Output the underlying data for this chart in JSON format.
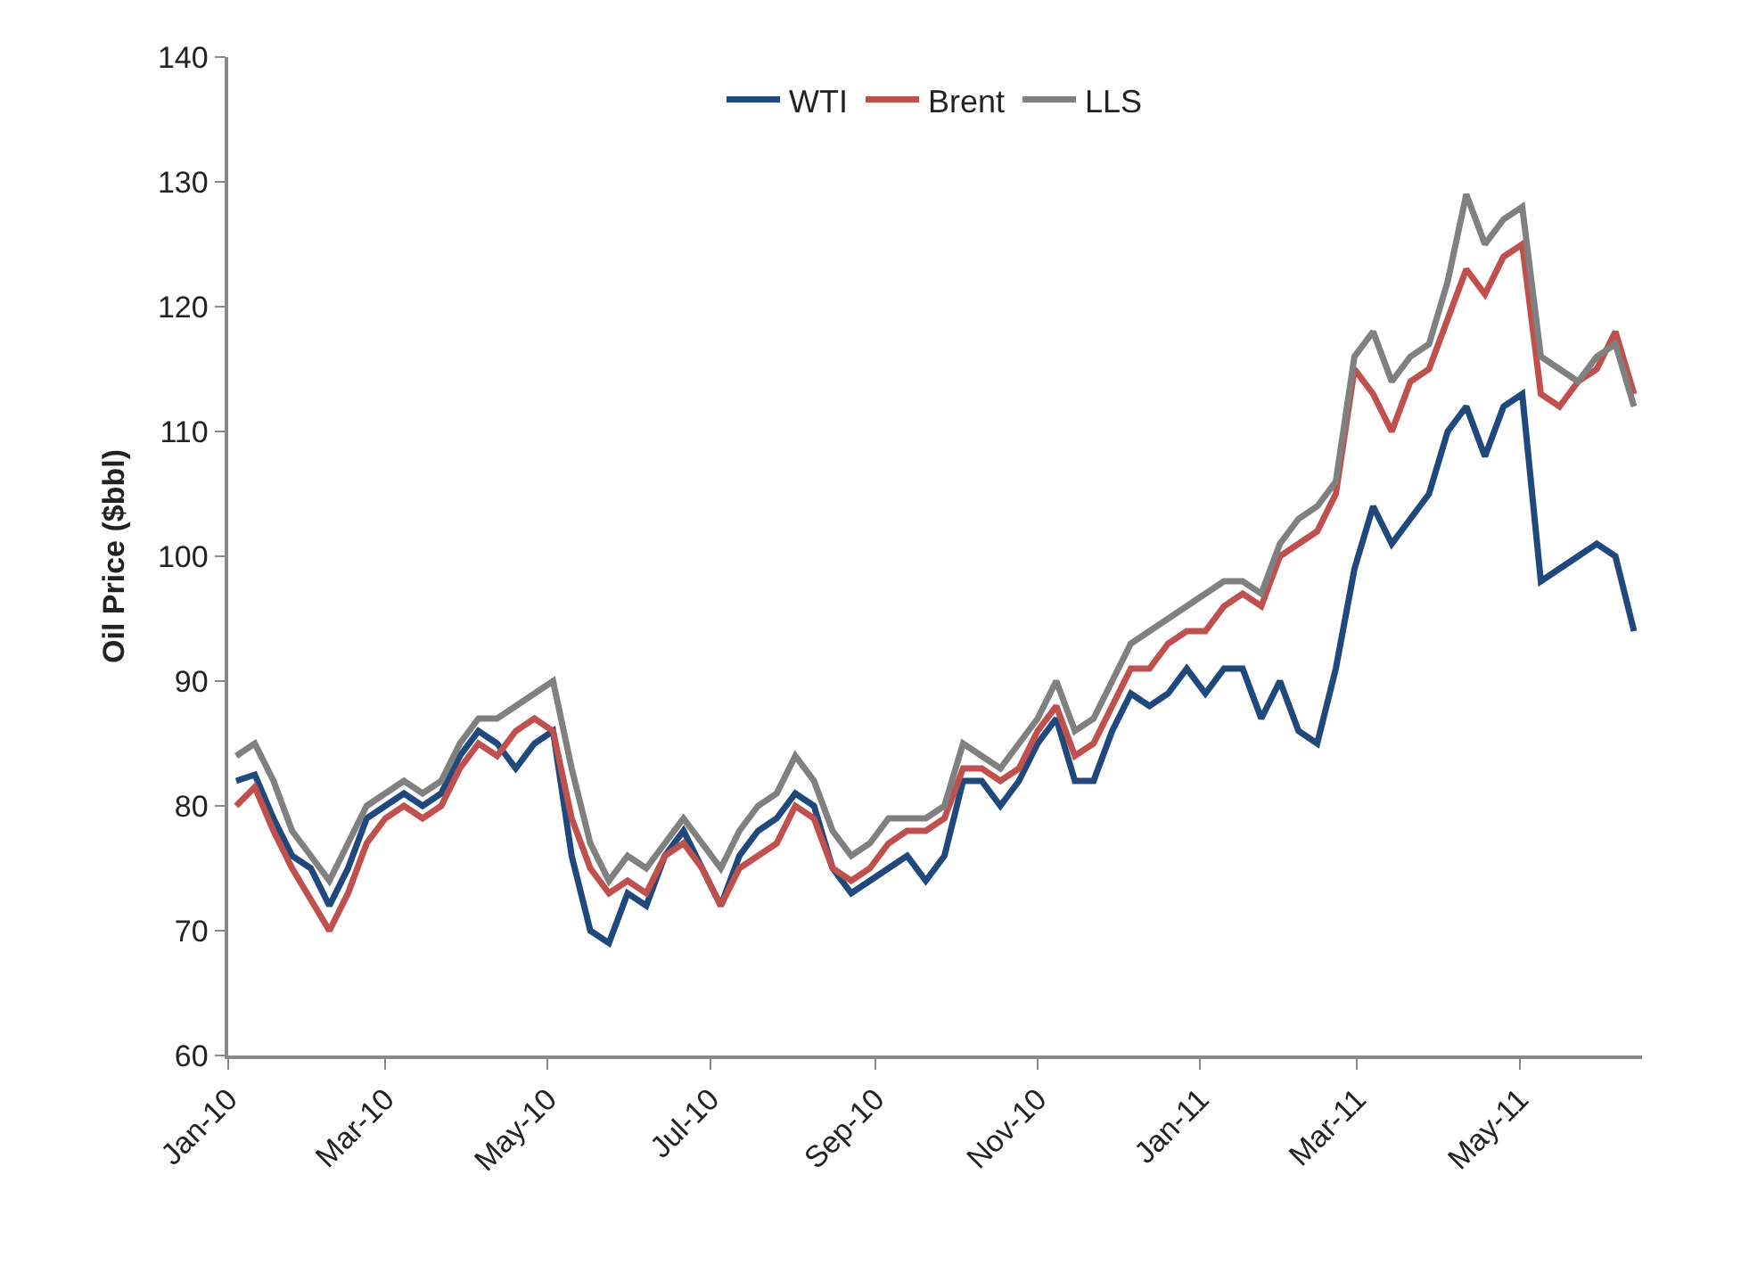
{
  "chart_data": {
    "type": "line",
    "ylabel": "Oil Price ($bbl)",
    "legend": "top",
    "grid": false,
    "marker": "none",
    "line_style": "solid",
    "x": [
      "2010-01-04",
      "2010-01-11",
      "2010-01-18",
      "2010-01-25",
      "2010-02-01",
      "2010-02-08",
      "2010-02-15",
      "2010-02-22",
      "2010-03-01",
      "2010-03-08",
      "2010-03-15",
      "2010-03-22",
      "2010-03-29",
      "2010-04-05",
      "2010-04-12",
      "2010-04-19",
      "2010-04-26",
      "2010-05-03",
      "2010-05-10",
      "2010-05-17",
      "2010-05-24",
      "2010-05-31",
      "2010-06-07",
      "2010-06-14",
      "2010-06-21",
      "2010-06-28",
      "2010-07-05",
      "2010-07-12",
      "2010-07-19",
      "2010-07-26",
      "2010-08-02",
      "2010-08-09",
      "2010-08-16",
      "2010-08-23",
      "2010-08-30",
      "2010-09-06",
      "2010-09-13",
      "2010-09-20",
      "2010-09-27",
      "2010-10-04",
      "2010-10-11",
      "2010-10-18",
      "2010-10-25",
      "2010-11-01",
      "2010-11-08",
      "2010-11-15",
      "2010-11-22",
      "2010-11-29",
      "2010-12-06",
      "2010-12-13",
      "2010-12-20",
      "2010-12-27",
      "2011-01-03",
      "2011-01-10",
      "2011-01-17",
      "2011-01-24",
      "2011-01-31",
      "2011-02-07",
      "2011-02-14",
      "2011-02-21",
      "2011-02-28",
      "2011-03-07",
      "2011-03-14",
      "2011-03-21",
      "2011-03-28",
      "2011-04-04",
      "2011-04-11",
      "2011-04-18",
      "2011-04-25",
      "2011-05-02",
      "2011-05-09",
      "2011-05-16",
      "2011-05-23",
      "2011-05-30",
      "2011-06-06",
      "2011-06-13"
    ],
    "series": [
      {
        "name": "WTI",
        "color": "#1f497d",
        "values": [
          82,
          82.5,
          79,
          76,
          75,
          72,
          75,
          79,
          80,
          81,
          80,
          81,
          84,
          86,
          85,
          83,
          85,
          86,
          76,
          70,
          69,
          73,
          72,
          76,
          78,
          75,
          72,
          76,
          78,
          79,
          81,
          80,
          75,
          73,
          74,
          75,
          76,
          74,
          76,
          82,
          82,
          80,
          82,
          85,
          87,
          82,
          82,
          86,
          89,
          88,
          89,
          91,
          89,
          91,
          91,
          87,
          90,
          86,
          85,
          91,
          99,
          104,
          101,
          103,
          105,
          110,
          112,
          108,
          112,
          113,
          98,
          99,
          100,
          101,
          100,
          94
        ]
      },
      {
        "name": "Brent",
        "color": "#c0504d",
        "values": [
          80,
          81.5,
          78,
          75,
          72.5,
          70,
          73,
          77,
          79,
          80,
          79,
          80,
          83,
          85,
          84,
          86,
          87,
          86,
          79,
          75,
          73,
          74,
          73,
          76,
          77,
          75,
          72,
          75,
          76,
          77,
          80,
          79,
          75,
          74,
          75,
          77,
          78,
          78,
          79,
          83,
          83,
          82,
          83,
          86,
          88,
          84,
          85,
          88,
          91,
          91,
          93,
          94,
          94,
          96,
          97,
          96,
          100,
          101,
          102,
          105,
          115,
          113,
          110,
          114,
          115,
          119,
          123,
          121,
          124,
          125,
          113,
          112,
          114,
          115,
          118,
          113
        ]
      },
      {
        "name": "LLS",
        "color": "#808080",
        "values": [
          84,
          85,
          82,
          78,
          76,
          74,
          77,
          80,
          81,
          82,
          81,
          82,
          85,
          87,
          87,
          88,
          89,
          90,
          83,
          77,
          74,
          76,
          75,
          77,
          79,
          77,
          75,
          78,
          80,
          81,
          84,
          82,
          78,
          76,
          77,
          79,
          79,
          79,
          80,
          85,
          84,
          83,
          85,
          87,
          90,
          86,
          87,
          90,
          93,
          94,
          95,
          96,
          97,
          98,
          98,
          97,
          101,
          103,
          104,
          106,
          116,
          118,
          114,
          116,
          117,
          122,
          129,
          125,
          127,
          128,
          116,
          115,
          114,
          116,
          117,
          112
        ]
      }
    ],
    "xlim": [
      "2010-01-01",
      "2011-06-16"
    ],
    "xticks": [
      {
        "value": "2010-01-01",
        "label": "Jan-10"
      },
      {
        "value": "2010-03-01",
        "label": "Mar-10"
      },
      {
        "value": "2010-05-01",
        "label": "May-10"
      },
      {
        "value": "2010-07-01",
        "label": "Jul-10"
      },
      {
        "value": "2010-09-01",
        "label": "Sep-10"
      },
      {
        "value": "2010-11-01",
        "label": "Nov-10"
      },
      {
        "value": "2011-01-01",
        "label": "Jan-11"
      },
      {
        "value": "2011-03-01",
        "label": "Mar-11"
      },
      {
        "value": "2011-05-01",
        "label": "May-11"
      }
    ],
    "ylim": [
      60,
      140
    ],
    "yticks": [
      60,
      70,
      80,
      90,
      100,
      110,
      120,
      130,
      140
    ]
  }
}
